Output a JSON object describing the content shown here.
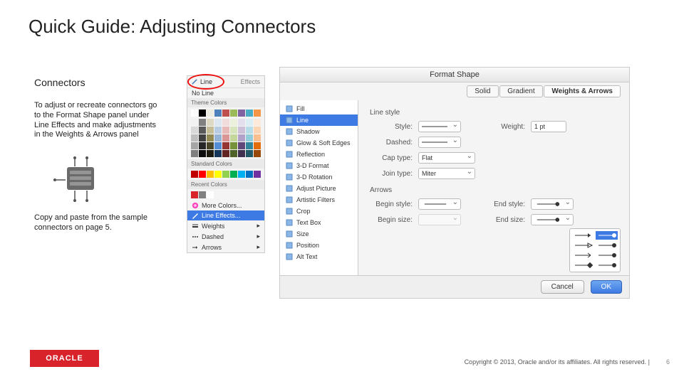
{
  "title": "Quick Guide: Adjusting Connectors",
  "subhead": "Connectors",
  "body_1": "To adjust or recreate connectors go to the Format Shape panel under Line Effects and make adjustments in the Weights & Arrows panel",
  "body_2": "Copy and paste from the sample connectors on page 5.",
  "oracle_logo_text": "ORACLE",
  "copyright": "Copyright © 2013, Oracle and/or its affiliates. All rights reserved.   |",
  "page_number": "6",
  "dropdown": {
    "tool_label": "Line",
    "tool_neighbor": "Effects",
    "no_line": "No Line",
    "section_theme": "Theme Colors",
    "section_standard": "Standard Colors",
    "section_recent": "Recent Colors",
    "more": "More Colors...",
    "line_effects": "Line Effects...",
    "weights": "Weights",
    "dashed": "Dashed",
    "arrows": "Arrows",
    "theme_grays": [
      "#ffffff",
      "#000000",
      "#eeece1",
      "#4f81bd",
      "#c0504d",
      "#9bbb59",
      "#8064a2",
      "#4bacc6",
      "#f79646"
    ],
    "theme_rows": [
      [
        "#f2f2f2",
        "#808080",
        "#ddd9c3",
        "#dce6f1",
        "#f2dcdb",
        "#ebf1dd",
        "#e4dfec",
        "#dbeef3",
        "#fdeada"
      ],
      [
        "#d9d9d9",
        "#595959",
        "#c4bd97",
        "#b8cce4",
        "#e6b8b7",
        "#d8e4bc",
        "#ccc1d9",
        "#b7dee8",
        "#fcd5b4"
      ],
      [
        "#bfbfbf",
        "#404040",
        "#948a54",
        "#95b3d7",
        "#da9694",
        "#c4d79b",
        "#b1a0c7",
        "#92cddc",
        "#fabf8f"
      ],
      [
        "#a6a6a6",
        "#262626",
        "#494529",
        "#538dd5",
        "#963634",
        "#76933c",
        "#60497a",
        "#31869b",
        "#e26b0a"
      ],
      [
        "#808080",
        "#0d0d0d",
        "#1d1b10",
        "#16365c",
        "#632523",
        "#4f6228",
        "#403151",
        "#215967",
        "#974706"
      ]
    ],
    "standard": [
      "#c00000",
      "#ff0000",
      "#ffc000",
      "#ffff00",
      "#92d050",
      "#00b050",
      "#00b0f0",
      "#0070c0",
      "#7030a0"
    ],
    "recent": [
      "#d8232a",
      "#808080",
      "#ffffff"
    ]
  },
  "format_shape": {
    "window_title": "Format Shape",
    "tabs": [
      "Solid",
      "Gradient",
      "Weights & Arrows"
    ],
    "selected_tab": 2,
    "categories": [
      "Fill",
      "Line",
      "Shadow",
      "Glow & Soft Edges",
      "Reflection",
      "3-D Format",
      "3-D Rotation",
      "Adjust Picture",
      "Artistic Filters",
      "Crop",
      "Text Box",
      "Size",
      "Position",
      "Alt Text"
    ],
    "selected_category": 1,
    "group1": "Line style",
    "style_label": "Style:",
    "weight_label": "Weight:",
    "weight_value": "1 pt",
    "dashed_label": "Dashed:",
    "cap_label": "Cap type:",
    "cap_value": "Flat",
    "join_label": "Join type:",
    "join_value": "Miter",
    "group2": "Arrows",
    "begin_style_label": "Begin style:",
    "end_style_label": "End style:",
    "begin_size_label": "Begin size:",
    "end_size_label": "End size:",
    "cancel": "Cancel",
    "ok": "OK"
  },
  "colors": {
    "annotation": "#e11",
    "highlight": "#3e7ae3",
    "oracle_red": "#d8232a"
  }
}
